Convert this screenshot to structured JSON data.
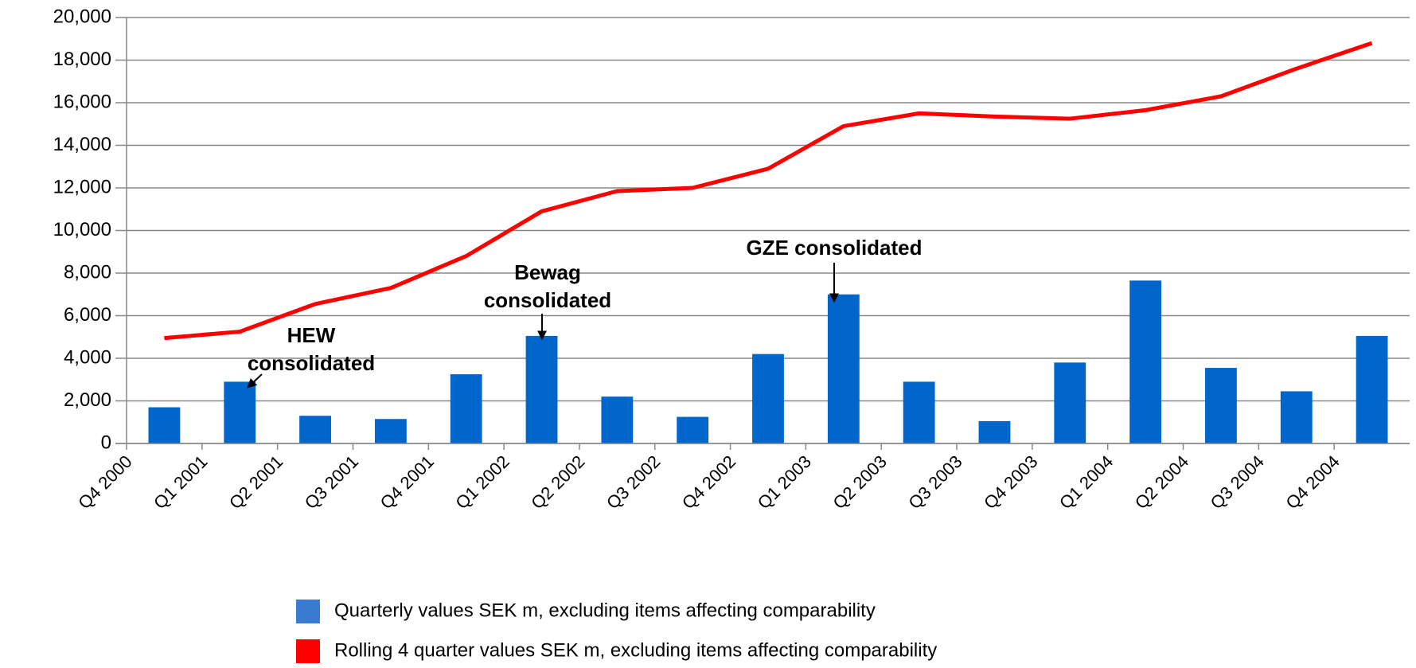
{
  "chart_data": {
    "type": "bar-line",
    "categories": [
      "Q4 2000",
      "Q1 2001",
      "Q2 2001",
      "Q3 2001",
      "Q4 2001",
      "Q1 2002",
      "Q2 2002",
      "Q3 2002",
      "Q4 2002",
      "Q1 2003",
      "Q2 2003",
      "Q3 2003",
      "Q4 2003",
      "Q1 2004",
      "Q2 2004",
      "Q3 2004",
      "Q4 2004"
    ],
    "series": [
      {
        "name": "Quarterly values SEK m, excluding items affecting comparability",
        "type": "bar",
        "color": "#0066cc",
        "legend_color": "#3a7dd0",
        "values": [
          1700,
          2900,
          1300,
          1150,
          3250,
          5050,
          2200,
          1250,
          4200,
          7000,
          2900,
          1050,
          3800,
          7650,
          3550,
          2450,
          5050
        ]
      },
      {
        "name": "Rolling 4 quarter values SEK m, excluding items affecting comparability",
        "type": "line",
        "color": "#ff0000",
        "legend_color": "#ff0000",
        "values": [
          4950,
          5250,
          6550,
          7300,
          8800,
          10900,
          11850,
          12000,
          12900,
          14900,
          15500,
          15350,
          15250,
          15650,
          16300,
          17600,
          18800
        ]
      }
    ],
    "ylim": [
      0,
      20000
    ],
    "yticks": [
      0,
      {
        "value": 2000,
        "label": "2,000"
      },
      {
        "value": 4000,
        "label": "4,000"
      },
      {
        "value": 6000,
        "label": "6,000"
      },
      {
        "value": 8000,
        "label": "8,000"
      },
      {
        "value": 10000,
        "label": "10,000"
      },
      {
        "value": 12000,
        "label": "12,000"
      },
      {
        "value": 14000,
        "label": "14,000"
      },
      {
        "value": 16000,
        "label": "16,000"
      },
      {
        "value": 18000,
        "label": "18,000"
      },
      {
        "value": 20000,
        "label": "20,000"
      }
    ],
    "grid": true,
    "annotations": [
      {
        "lines": [
          "HEW",
          "consolidated"
        ]
      },
      {
        "lines": [
          "Bewag",
          "consolidated"
        ]
      },
      {
        "lines": [
          "GZE consolidated"
        ]
      }
    ]
  }
}
